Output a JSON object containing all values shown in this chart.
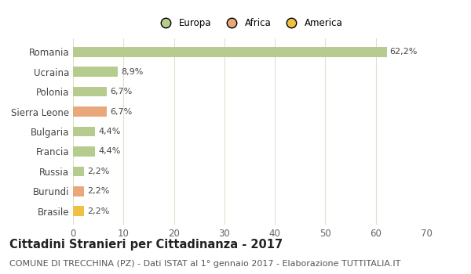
{
  "categories": [
    "Romania",
    "Ucraina",
    "Polonia",
    "Sierra Leone",
    "Bulgaria",
    "Francia",
    "Russia",
    "Burundi",
    "Brasile"
  ],
  "values": [
    62.2,
    8.9,
    6.7,
    6.7,
    4.4,
    4.4,
    2.2,
    2.2,
    2.2
  ],
  "labels": [
    "62,2%",
    "8,9%",
    "6,7%",
    "6,7%",
    "4,4%",
    "4,4%",
    "2,2%",
    "2,2%",
    "2,2%"
  ],
  "colors": [
    "#b5cc8e",
    "#b5cc8e",
    "#b5cc8e",
    "#e8a87c",
    "#b5cc8e",
    "#b5cc8e",
    "#b5cc8e",
    "#e8a87c",
    "#f0c040"
  ],
  "legend": [
    {
      "label": "Europa",
      "color": "#b5cc8e"
    },
    {
      "label": "Africa",
      "color": "#e8a87c"
    },
    {
      "label": "America",
      "color": "#f0c040"
    }
  ],
  "xlim": [
    0,
    70
  ],
  "xticks": [
    0,
    10,
    20,
    30,
    40,
    50,
    60,
    70
  ],
  "title": "Cittadini Stranieri per Cittadinanza - 2017",
  "subtitle": "COMUNE DI TRECCHINA (PZ) - Dati ISTAT al 1° gennaio 2017 - Elaborazione TUTTITALIA.IT",
  "title_fontsize": 10.5,
  "subtitle_fontsize": 8,
  "background_color": "#ffffff",
  "grid_color": "#e0e0d0",
  "bar_height": 0.5,
  "label_fontsize": 8,
  "ytick_fontsize": 8.5,
  "xtick_fontsize": 8.5,
  "legend_fontsize": 8.5
}
